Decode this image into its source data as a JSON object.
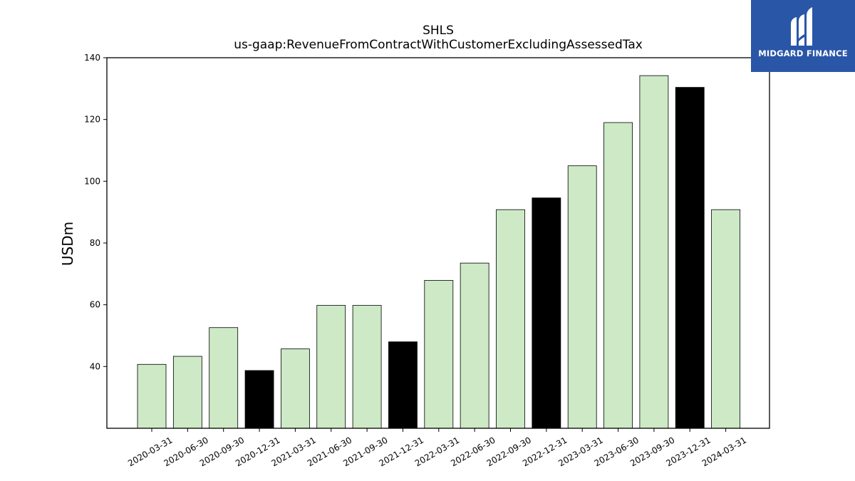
{
  "chart_data": {
    "type": "bar",
    "title": "SHLS",
    "subtitle": "us-gaap:RevenueFromContractWithCustomerExcludingAssessedTax",
    "xlabel": "",
    "ylabel": "USDm",
    "ylim": [
      20,
      140
    ],
    "yticks": [
      40,
      60,
      80,
      100,
      120,
      140
    ],
    "grid": false,
    "categories": [
      "2020-03-31",
      "2020-06-30",
      "2020-09-30",
      "2020-12-31",
      "2021-03-31",
      "2021-06-30",
      "2021-09-30",
      "2021-12-31",
      "2022-03-31",
      "2022-06-30",
      "2022-09-30",
      "2022-12-31",
      "2023-03-31",
      "2023-06-30",
      "2023-09-30",
      "2023-12-31",
      "2024-03-31"
    ],
    "values": [
      40.7,
      43.3,
      52.6,
      38.7,
      45.7,
      59.8,
      59.8,
      48.0,
      67.9,
      73.5,
      90.8,
      94.6,
      105.0,
      119.0,
      134.2,
      130.4,
      90.8
    ],
    "colors": [
      "#cde9c6",
      "#cde9c6",
      "#cde9c6",
      "#000000",
      "#cde9c6",
      "#cde9c6",
      "#cde9c6",
      "#000000",
      "#cde9c6",
      "#cde9c6",
      "#cde9c6",
      "#000000",
      "#cde9c6",
      "#cde9c6",
      "#cde9c6",
      "#000000",
      "#cde9c6"
    ]
  },
  "logo": {
    "text": "MIDGARD FINANCE",
    "background": "#2a56a8",
    "icon": "midgard-logo-icon"
  }
}
